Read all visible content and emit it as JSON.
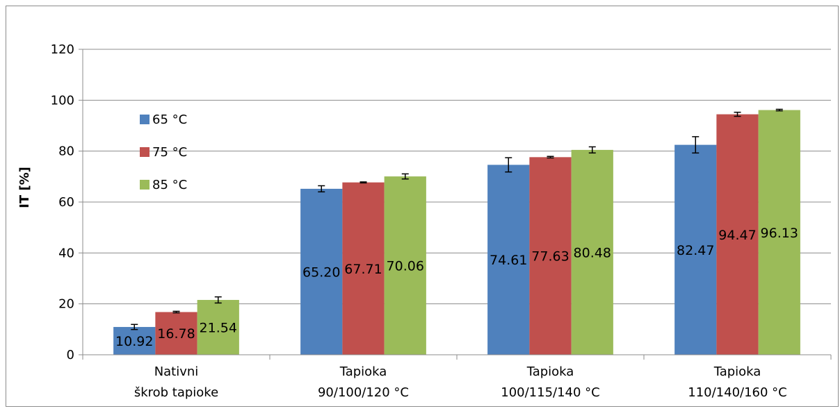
{
  "chart_data": {
    "type": "bar",
    "title": "",
    "xlabel": "",
    "ylabel": "IT [%]",
    "ylim": [
      0,
      120
    ],
    "yticks": [
      0,
      20,
      40,
      60,
      80,
      100,
      120
    ],
    "grid": true,
    "legend_position": "top-left",
    "categories": [
      [
        "Nativni",
        "škrob tapioke"
      ],
      [
        "Tapioka",
        "90/100/120 °C"
      ],
      [
        "Tapioka",
        "100/115/140 °C"
      ],
      [
        "Tapioka",
        "110/140/160 °C"
      ]
    ],
    "series": [
      {
        "name": "65 °C",
        "color": "#4F81BD",
        "values": [
          10.92,
          65.2,
          74.61,
          82.47
        ],
        "errors": [
          1.0,
          1.2,
          2.8,
          3.2
        ],
        "labels": [
          "10.92",
          "65.20",
          "74.61",
          "82.47"
        ]
      },
      {
        "name": "75 °C",
        "color": "#C0504D",
        "values": [
          16.78,
          67.71,
          77.63,
          94.47
        ],
        "errors": [
          0.3,
          0.2,
          0.3,
          0.8
        ],
        "labels": [
          "16.78",
          "67.71",
          "77.63",
          "94.47"
        ]
      },
      {
        "name": "85 °C",
        "color": "#9BBB59",
        "values": [
          21.54,
          70.06,
          80.48,
          96.13
        ],
        "errors": [
          1.2,
          1.0,
          1.2,
          0.3
        ],
        "labels": [
          "21.54",
          "70.06",
          "80.48",
          "96.13"
        ]
      }
    ]
  }
}
